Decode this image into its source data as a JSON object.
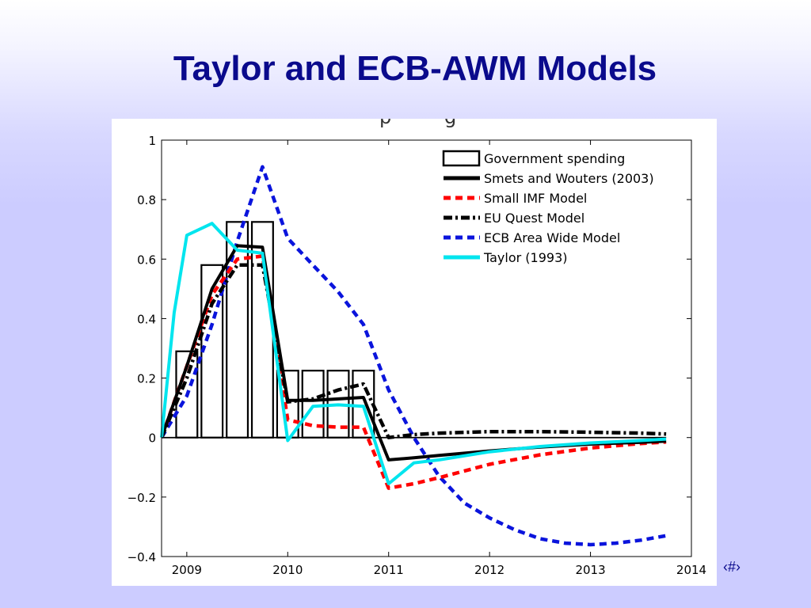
{
  "slide": {
    "title": "Taylor and ECB-AWM Models",
    "slide_number": "‹#›"
  },
  "chart_data": {
    "type": "line",
    "title": "",
    "xlabel": "",
    "ylabel": "",
    "xlim": [
      2008.75,
      2014.0
    ],
    "ylim": [
      -0.4,
      1.0
    ],
    "grid": false,
    "legend_position": "top-right",
    "x_ticks": [
      2009,
      2010,
      2011,
      2012,
      2013,
      2014
    ],
    "y_ticks": [
      -0.4,
      -0.2,
      0,
      0.2,
      0.4,
      0.6,
      0.8,
      1
    ],
    "bars": {
      "name": "Government spending",
      "x": [
        2009.0,
        2009.25,
        2009.5,
        2009.75,
        2010.0,
        2010.25,
        2010.5,
        2010.75
      ],
      "values": [
        0.29,
        0.58,
        0.725,
        0.725,
        0.225,
        0.225,
        0.225,
        0.225
      ],
      "width": 0.21
    },
    "series": [
      {
        "name": "Smets and Wouters (2003)",
        "color": "#000000",
        "style": "solid",
        "x": [
          2008.75,
          2009.0,
          2009.25,
          2009.5,
          2009.75,
          2010.0,
          2010.25,
          2010.5,
          2010.75,
          2011.0,
          2011.25,
          2011.5,
          2012.0,
          2012.5,
          2013.0,
          2013.5,
          2013.75
        ],
        "values": [
          0.0,
          0.24,
          0.5,
          0.645,
          0.64,
          0.125,
          0.125,
          0.13,
          0.135,
          -0.075,
          -0.068,
          -0.06,
          -0.045,
          -0.032,
          -0.022,
          -0.016,
          -0.012
        ]
      },
      {
        "name": "Small IMF Model",
        "color": "#ff0000",
        "style": "dashed",
        "x": [
          2008.75,
          2009.0,
          2009.25,
          2009.5,
          2009.75,
          2010.0,
          2010.25,
          2010.5,
          2010.75,
          2011.0,
          2011.25,
          2011.5,
          2012.0,
          2012.5,
          2013.0,
          2013.5,
          2013.75
        ],
        "values": [
          0.0,
          0.24,
          0.48,
          0.6,
          0.61,
          0.06,
          0.04,
          0.035,
          0.035,
          -0.17,
          -0.155,
          -0.135,
          -0.09,
          -0.058,
          -0.035,
          -0.02,
          -0.015
        ]
      },
      {
        "name": "EU Quest Model",
        "color": "#000000",
        "style": "dashdot",
        "x": [
          2008.75,
          2009.0,
          2009.25,
          2009.5,
          2009.75,
          2010.0,
          2010.25,
          2010.5,
          2010.75,
          2011.0,
          2011.25,
          2011.5,
          2012.0,
          2012.5,
          2013.0,
          2013.5,
          2013.75
        ],
        "values": [
          0.0,
          0.2,
          0.45,
          0.58,
          0.58,
          0.12,
          0.13,
          0.16,
          0.18,
          0.0,
          0.01,
          0.015,
          0.02,
          0.02,
          0.018,
          0.015,
          0.012
        ]
      },
      {
        "name": "ECB Area Wide Model",
        "color": "#0a14dc",
        "style": "dashed",
        "x": [
          2008.75,
          2009.0,
          2009.25,
          2009.5,
          2009.75,
          2010.0,
          2010.25,
          2010.5,
          2010.75,
          2011.0,
          2011.25,
          2011.5,
          2011.75,
          2012.0,
          2012.25,
          2012.5,
          2012.75,
          2013.0,
          2013.25,
          2013.5,
          2013.75
        ],
        "values": [
          0.0,
          0.14,
          0.38,
          0.66,
          0.91,
          0.67,
          0.58,
          0.49,
          0.38,
          0.16,
          0.0,
          -0.13,
          -0.22,
          -0.27,
          -0.31,
          -0.34,
          -0.355,
          -0.36,
          -0.355,
          -0.345,
          -0.33
        ]
      },
      {
        "name": "Taylor (1993)",
        "color": "#00e5ee",
        "style": "solid",
        "x": [
          2008.75,
          2008.875,
          2009.0,
          2009.25,
          2009.5,
          2009.75,
          2010.0,
          2010.25,
          2010.5,
          2010.75,
          2011.0,
          2011.25,
          2011.5,
          2012.0,
          2012.5,
          2013.0,
          2013.5,
          2013.75
        ],
        "values": [
          0.0,
          0.42,
          0.68,
          0.72,
          0.63,
          0.62,
          -0.01,
          0.105,
          0.11,
          0.105,
          -0.155,
          -0.085,
          -0.075,
          -0.048,
          -0.03,
          -0.018,
          -0.01,
          -0.005
        ]
      }
    ]
  }
}
